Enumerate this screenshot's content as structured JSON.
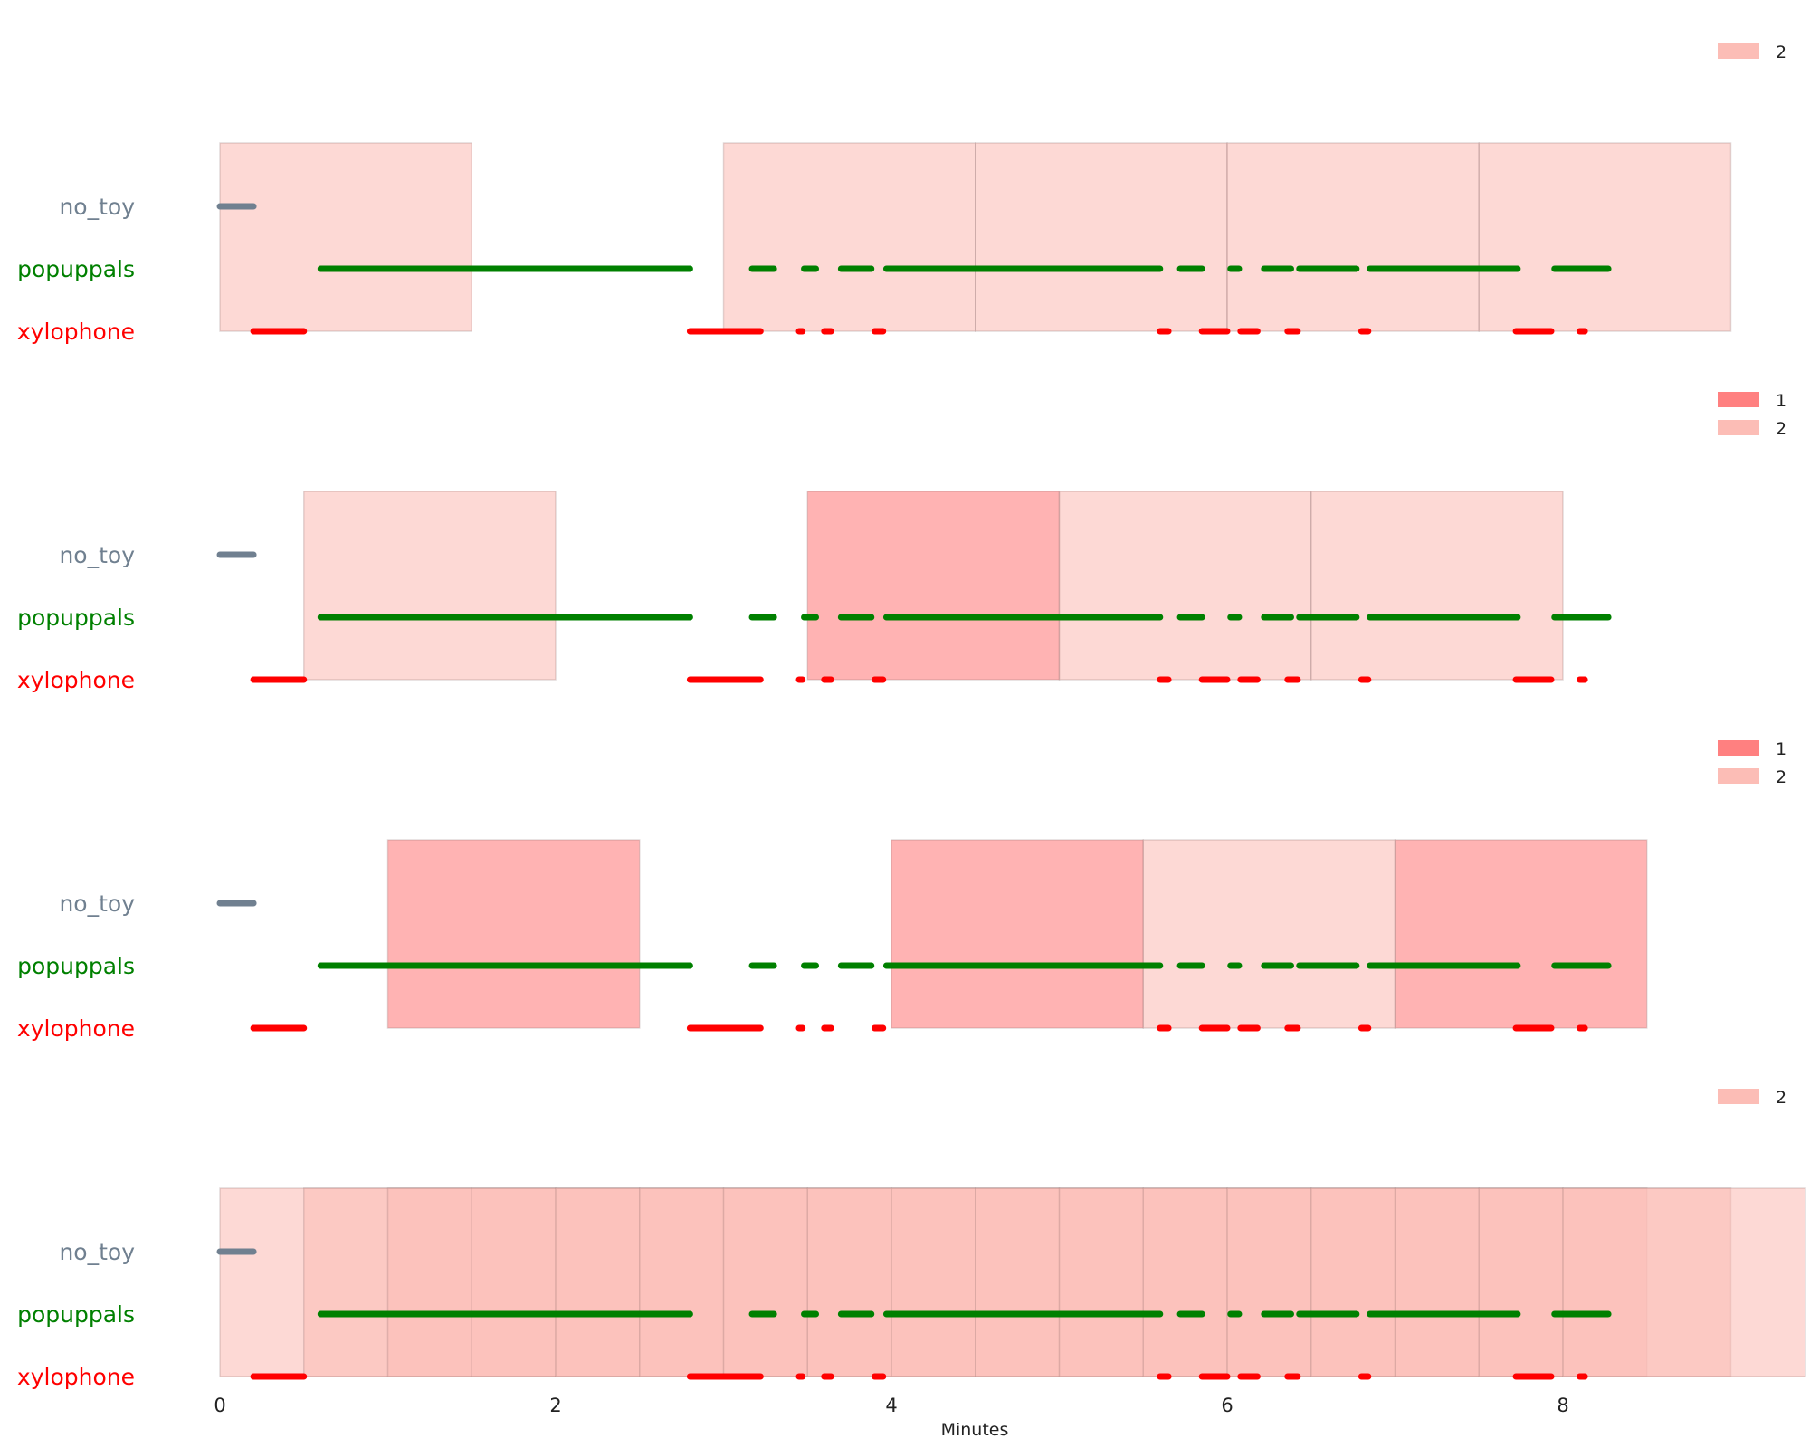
{
  "chart_data": {
    "type": "timeline",
    "xlabel": "Minutes",
    "x_ticks": [
      0,
      2,
      4,
      6,
      8
    ],
    "xlim": [
      0,
      9.45
    ],
    "categories": [
      "no_toy",
      "popuppals",
      "xylophone"
    ],
    "category_colors": {
      "no_toy": "#708090",
      "popuppals": "#008000",
      "xylophone": "#ff0000"
    },
    "shade_colors": {
      "1": "#ff8080",
      "2": "#fcbdb6"
    },
    "segments": {
      "no_toy": [
        [
          0.0,
          0.2
        ]
      ],
      "popuppals": [
        [
          0.6,
          2.8
        ],
        [
          3.17,
          3.3
        ],
        [
          3.48,
          3.55
        ],
        [
          3.7,
          3.88
        ],
        [
          3.97,
          5.6
        ],
        [
          5.72,
          5.85
        ],
        [
          6.02,
          6.07
        ],
        [
          6.22,
          6.38
        ],
        [
          6.43,
          6.77
        ],
        [
          6.85,
          7.73
        ],
        [
          7.95,
          8.27
        ]
      ],
      "xylophone": [
        [
          0.2,
          0.5
        ],
        [
          2.8,
          3.22
        ],
        [
          3.45,
          3.47
        ],
        [
          3.6,
          3.64
        ],
        [
          3.9,
          3.95
        ],
        [
          5.6,
          5.65
        ],
        [
          5.85,
          6.0
        ],
        [
          6.08,
          6.18
        ],
        [
          6.36,
          6.42
        ],
        [
          6.8,
          6.84
        ],
        [
          7.72,
          7.93
        ],
        [
          8.1,
          8.13
        ]
      ]
    },
    "panels": [
      {
        "legend": [
          "2"
        ],
        "windows": [
          {
            "start": 0.0,
            "end": 1.5,
            "level": 2
          },
          {
            "start": 3.0,
            "end": 4.5,
            "level": 2
          },
          {
            "start": 4.5,
            "end": 6.0,
            "level": 2
          },
          {
            "start": 6.0,
            "end": 7.5,
            "level": 2
          },
          {
            "start": 7.5,
            "end": 9.0,
            "level": 2
          }
        ]
      },
      {
        "legend": [
          "1",
          "2"
        ],
        "windows": [
          {
            "start": 0.5,
            "end": 2.0,
            "level": 2
          },
          {
            "start": 3.5,
            "end": 5.0,
            "level": 1
          },
          {
            "start": 5.0,
            "end": 6.5,
            "level": 2
          },
          {
            "start": 6.5,
            "end": 8.0,
            "level": 2
          }
        ]
      },
      {
        "legend": [
          "1",
          "2"
        ],
        "windows": [
          {
            "start": 1.0,
            "end": 2.5,
            "level": 1
          },
          {
            "start": 4.0,
            "end": 5.5,
            "level": 1
          },
          {
            "start": 5.5,
            "end": 7.0,
            "level": 2
          },
          {
            "start": 7.0,
            "end": 8.5,
            "level": 1
          }
        ]
      },
      {
        "legend": [
          "2"
        ],
        "windows": [
          {
            "start": 0.0,
            "end": 1.5,
            "level": 2
          },
          {
            "start": 0.5,
            "end": 2.0,
            "level": 2
          },
          {
            "start": 1.0,
            "end": 2.5,
            "level": 2
          },
          {
            "start": 1.5,
            "end": 3.0,
            "level": 2
          },
          {
            "start": 2.0,
            "end": 3.5,
            "level": 2
          },
          {
            "start": 2.5,
            "end": 4.0,
            "level": 2
          },
          {
            "start": 3.0,
            "end": 4.5,
            "level": 2
          },
          {
            "start": 3.5,
            "end": 5.0,
            "level": 2
          },
          {
            "start": 4.0,
            "end": 5.5,
            "level": 2
          },
          {
            "start": 4.5,
            "end": 6.0,
            "level": 2
          },
          {
            "start": 5.0,
            "end": 6.5,
            "level": 2
          },
          {
            "start": 5.5,
            "end": 7.0,
            "level": 2
          },
          {
            "start": 6.0,
            "end": 7.5,
            "level": 2
          },
          {
            "start": 6.5,
            "end": 8.0,
            "level": 2
          },
          {
            "start": 7.0,
            "end": 8.5,
            "level": 2
          },
          {
            "start": 7.5,
            "end": 9.0,
            "level": 2
          },
          {
            "start": 8.0,
            "end": 9.5,
            "level": 2
          }
        ]
      }
    ]
  }
}
